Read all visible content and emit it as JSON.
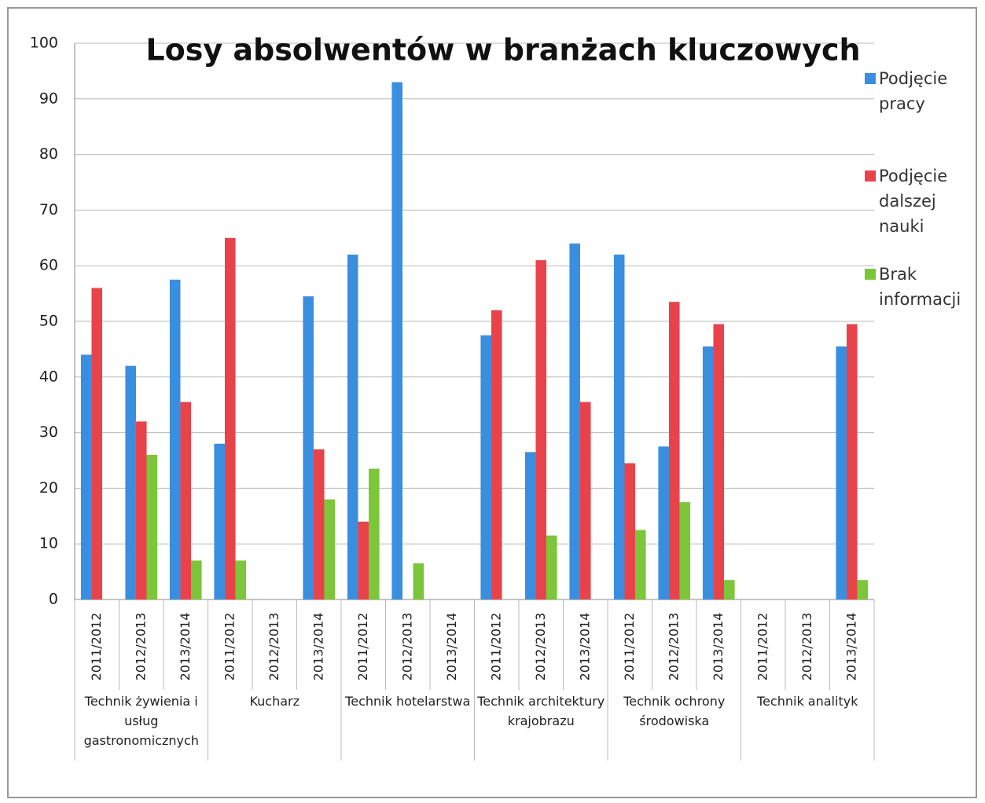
{
  "chart_data": {
    "type": "bar",
    "title": "Losy absolwentów w branżach kluczowych",
    "categories": [
      "2011/2012",
      "2012/2013",
      "2013/2014",
      "2011/2012",
      "2012/2013",
      "2013/2014",
      "2011/2012",
      "2012/2013",
      "2013/2014",
      "2011/2012",
      "2012/2013",
      "2013/2014",
      "2011/2012",
      "2012/2013",
      "2013/2014",
      "2011/2012",
      "2012/2013",
      "2013/2014"
    ],
    "groups": [
      "Technik żywienia i usług gastronomicznych",
      "Kucharz",
      "Technik hotelarstwa",
      "Technik architektury krajobrazu",
      "Technik ochrony środowiska",
      "Technik analityk"
    ],
    "series": [
      {
        "name": "Podjęcie pracy",
        "color": "#3a8ee0",
        "values": [
          44,
          42,
          57.5,
          28,
          null,
          54.5,
          62,
          93,
          null,
          47.5,
          26.5,
          64,
          62,
          27.5,
          45.5,
          null,
          null,
          45.5
        ]
      },
      {
        "name": "Podjęcie dalszej nauki",
        "color": "#e8434b",
        "values": [
          56,
          32,
          35.5,
          65,
          null,
          27,
          14,
          null,
          null,
          52,
          61,
          35.5,
          24.5,
          53.5,
          49.5,
          null,
          null,
          49.5
        ]
      },
      {
        "name": "Brak informacji",
        "color": "#7cc63a",
        "values": [
          null,
          26,
          7,
          7,
          null,
          18,
          23.5,
          6.5,
          null,
          null,
          11.5,
          null,
          12.5,
          17.5,
          3.5,
          null,
          null,
          3.5
        ]
      }
    ],
    "ylim": [
      0,
      100
    ],
    "yticks": [
      0,
      10,
      20,
      30,
      40,
      50,
      60,
      70,
      80,
      90,
      100
    ],
    "grid": true
  }
}
